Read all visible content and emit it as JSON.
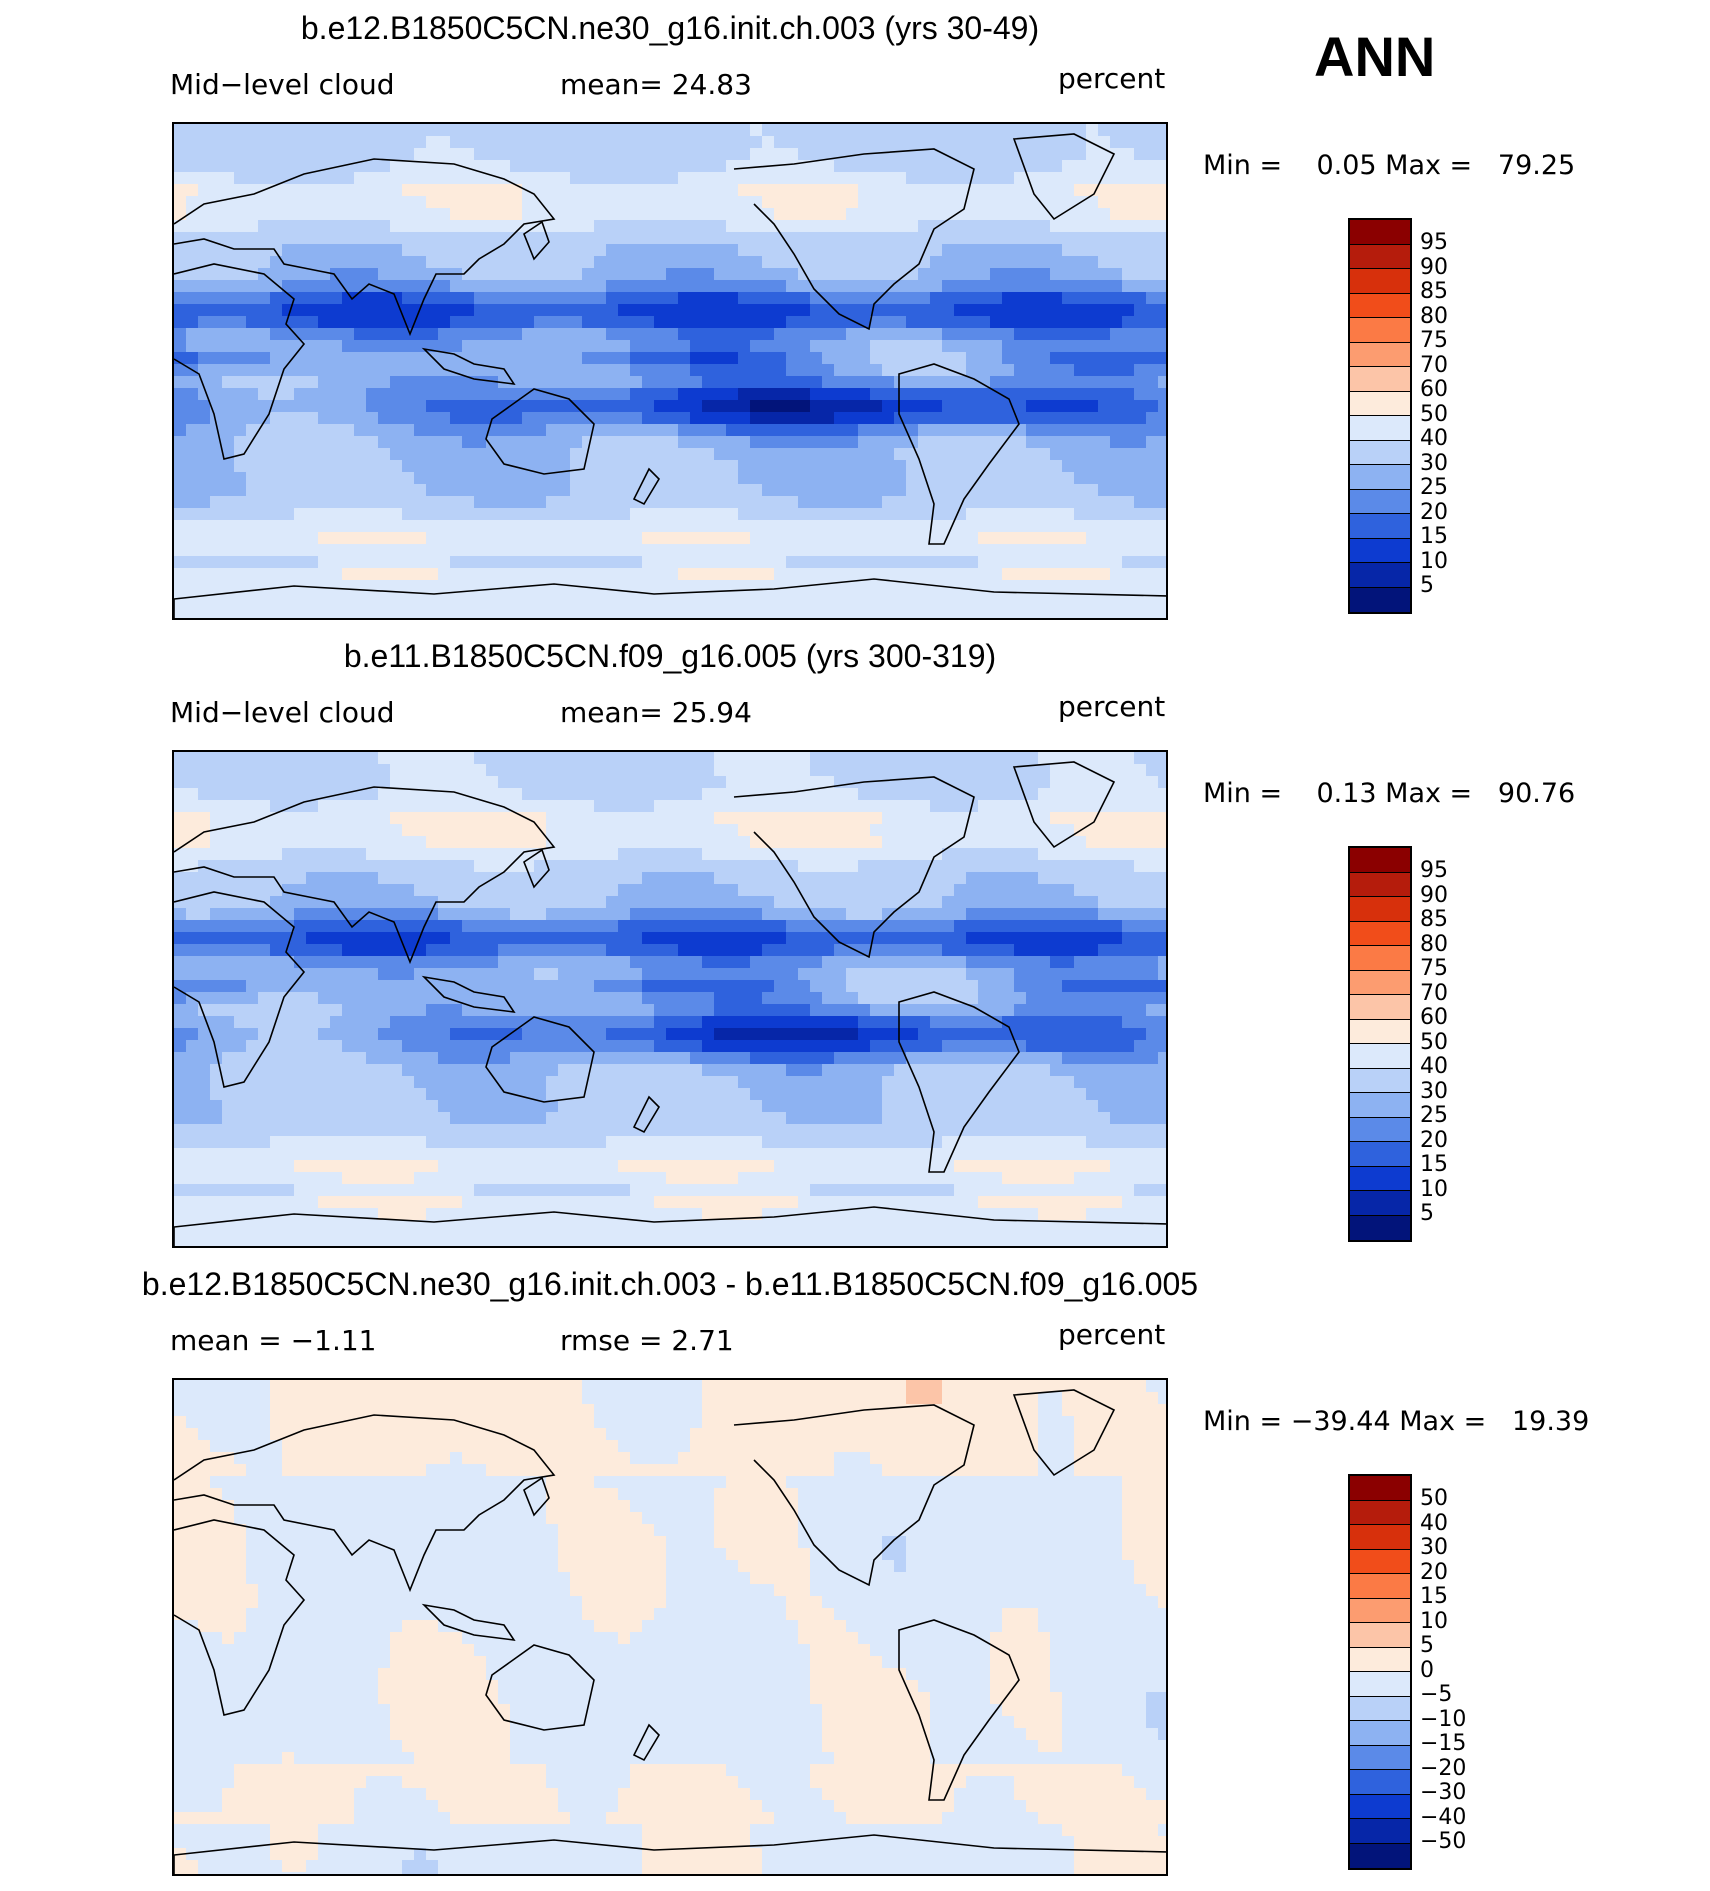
{
  "season": "ANN",
  "palette_positive": [
    "#8b0000",
    "#b51c0c",
    "#d7300c",
    "#f14d1a",
    "#fb7a45",
    "#fc9c70",
    "#fcc5a8",
    "#fdebdc"
  ],
  "panels": [
    {
      "title": "b.e12.B1850C5CN.ne30_g16.init.ch.003 (yrs 30-49)",
      "left_label": "Mid−level cloud",
      "mid_label": "mean=   24.83",
      "right_label": "percent",
      "minmax": "Min =    0.05 Max =   79.25",
      "colorbar_labels": [
        "95",
        "90",
        "85",
        "80",
        "75",
        "70",
        "60",
        "50",
        "40",
        "30",
        "25",
        "20",
        "15",
        "10",
        "5"
      ],
      "colorbar_colors": [
        "#8b0000",
        "#b51c0c",
        "#d7300c",
        "#f14d1a",
        "#fb7a45",
        "#fc9c70",
        "#fcc5a8",
        "#fdebdc",
        "#dce9fb",
        "#b9d1f8",
        "#8db2f2",
        "#5b8ae8",
        "#2f62dd",
        "#0d3bd0",
        "#0626a8",
        "#02147a"
      ],
      "field_kind": "abs"
    },
    {
      "title": "b.e11.B1850C5CN.f09_g16.005 (yrs 300-319)",
      "left_label": "Mid−level cloud",
      "mid_label": "mean=   25.94",
      "right_label": "percent",
      "minmax": "Min =    0.13 Max =   90.76",
      "colorbar_labels": [
        "95",
        "90",
        "85",
        "80",
        "75",
        "70",
        "60",
        "50",
        "40",
        "30",
        "25",
        "20",
        "15",
        "10",
        "5"
      ],
      "colorbar_colors": [
        "#8b0000",
        "#b51c0c",
        "#d7300c",
        "#f14d1a",
        "#fb7a45",
        "#fc9c70",
        "#fcc5a8",
        "#fdebdc",
        "#dce9fb",
        "#b9d1f8",
        "#8db2f2",
        "#5b8ae8",
        "#2f62dd",
        "#0d3bd0",
        "#0626a8",
        "#02147a"
      ],
      "field_kind": "abs2"
    },
    {
      "title": "b.e12.B1850C5CN.ne30_g16.init.ch.003 - b.e11.B1850C5CN.f09_g16.005",
      "left_label": "mean =   −1.11",
      "mid_label": "rmse =    2.71",
      "right_label": "percent",
      "minmax": "Min = −39.44 Max =   19.39",
      "colorbar_labels": [
        "50",
        "40",
        "30",
        "20",
        "15",
        "10",
        "5",
        "0",
        "−5",
        "−10",
        "−15",
        "−20",
        "−30",
        "−40",
        "−50"
      ],
      "colorbar_colors": [
        "#8b0000",
        "#b51c0c",
        "#d7300c",
        "#f14d1a",
        "#fb7a45",
        "#fc9c70",
        "#fcc5a8",
        "#fdebdc",
        "#dce9fb",
        "#b9d1f8",
        "#8db2f2",
        "#5b8ae8",
        "#2f62dd",
        "#0d3bd0",
        "#0626a8",
        "#02147a"
      ],
      "field_kind": "diff"
    }
  ]
}
